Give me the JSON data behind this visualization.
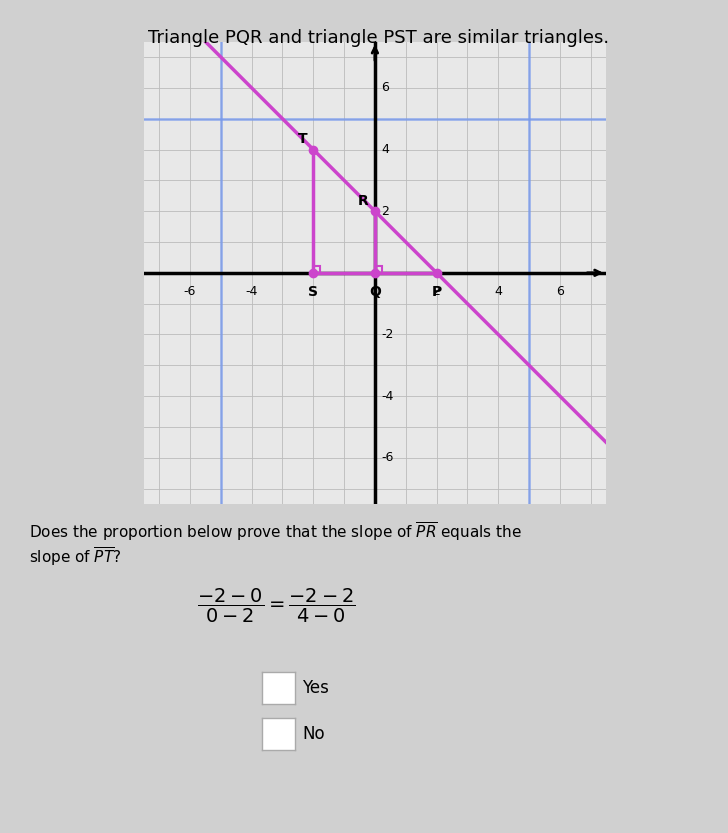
{
  "title": "Triangle PQR and triangle PST are similar triangles.",
  "bg_color": "#d0d0d0",
  "plot_bg_color": "#e8e8e8",
  "grid_color": "#bbbbbb",
  "axis_color": "#000000",
  "blue_line_color": "#7799ee",
  "magenta_color": "#cc44cc",
  "xlim": [
    -7.5,
    7.5
  ],
  "ylim": [
    -7.5,
    7.5
  ],
  "points": {
    "T": [
      -2,
      4
    ],
    "R": [
      0,
      2
    ],
    "Q": [
      0,
      0
    ],
    "P": [
      2,
      0
    ],
    "S": [
      -2,
      0
    ]
  },
  "title_fontsize": 13,
  "tick_fontsize": 9,
  "label_fontsize": 10,
  "question_text": "Does the proportion below prove that the slope of $\\overline{PR}$ equals the\nslope of $\\overline{PT}$?",
  "yes_text": "Yes",
  "no_text": "No"
}
